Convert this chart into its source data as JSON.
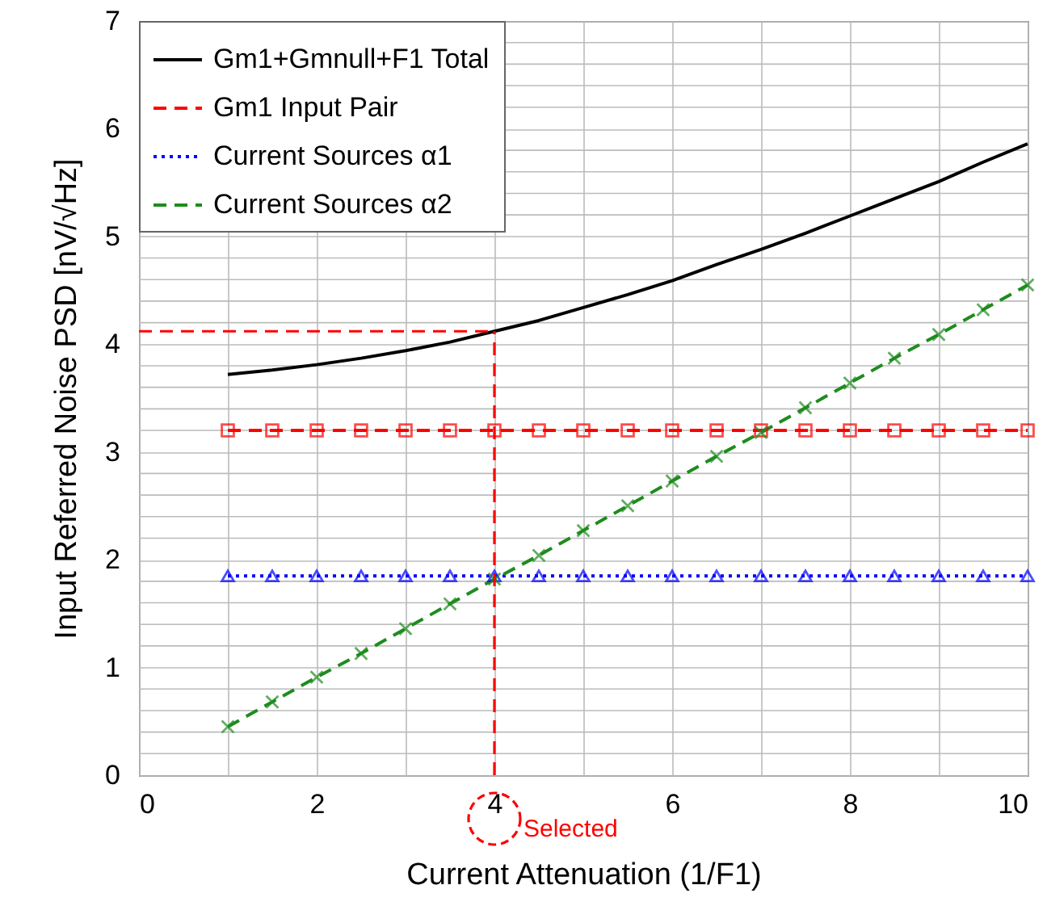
{
  "chart_data": {
    "type": "line",
    "xlabel": "Current Attenuation (1/F1)",
    "ylabel": "Input Referred Noise PSD [nV/√Hz]",
    "x": [
      1,
      1.5,
      2,
      2.5,
      3,
      3.5,
      4,
      4.5,
      5,
      5.5,
      6,
      6.5,
      7,
      7.5,
      8,
      8.5,
      9,
      9.5,
      10
    ],
    "series": [
      {
        "name": "Gm1+Gmnull+F1 Total",
        "color": "#000000",
        "line_style": "solid",
        "marker": "none",
        "values": [
          3.72,
          3.76,
          3.81,
          3.87,
          3.94,
          4.02,
          4.12,
          4.22,
          4.34,
          4.46,
          4.59,
          4.74,
          4.88,
          5.03,
          5.19,
          5.35,
          5.51,
          5.69,
          5.86
        ]
      },
      {
        "name": "Gm1 Input Pair",
        "color": "#ff0000",
        "line_style": "dashed",
        "marker": "square",
        "values": [
          3.2,
          3.2,
          3.2,
          3.2,
          3.2,
          3.2,
          3.2,
          3.2,
          3.2,
          3.2,
          3.2,
          3.2,
          3.2,
          3.2,
          3.2,
          3.2,
          3.2,
          3.2,
          3.2
        ]
      },
      {
        "name": "Current Sources α1",
        "color": "#0000ff",
        "line_style": "dotted",
        "marker": "triangle",
        "values": [
          1.85,
          1.85,
          1.85,
          1.85,
          1.85,
          1.85,
          1.85,
          1.85,
          1.85,
          1.85,
          1.85,
          1.85,
          1.85,
          1.85,
          1.85,
          1.85,
          1.85,
          1.85,
          1.85
        ]
      },
      {
        "name": "Current Sources α2",
        "color": "#1e8c1e",
        "line_style": "dashed",
        "marker": "cross",
        "values": [
          0.45,
          0.68,
          0.91,
          1.13,
          1.36,
          1.59,
          1.82,
          2.04,
          2.27,
          2.5,
          2.73,
          2.96,
          3.18,
          3.41,
          3.64,
          3.87,
          4.09,
          4.32,
          4.55
        ]
      }
    ],
    "xlim": [
      0,
      10
    ],
    "xticks": [
      0,
      {
        "value": 1,
        "label": null
      },
      2,
      {
        "value": 3,
        "label": null
      },
      4,
      {
        "value": 5,
        "label": null
      },
      6,
      {
        "value": 7,
        "label": null
      },
      8,
      {
        "value": 9,
        "label": null
      },
      10
    ],
    "ylim": [
      0,
      7
    ],
    "yticks": [
      0,
      {
        "value": 0.2,
        "label": null
      },
      {
        "value": 0.4,
        "label": null
      },
      {
        "value": 0.6,
        "label": null
      },
      {
        "value": 0.8,
        "label": null
      },
      1,
      {
        "value": 1.2,
        "label": null
      },
      {
        "value": 1.4,
        "label": null
      },
      {
        "value": 1.6,
        "label": null
      },
      {
        "value": 1.8,
        "label": null
      },
      2,
      {
        "value": 2.2,
        "label": null
      },
      {
        "value": 2.4,
        "label": null
      },
      {
        "value": 2.6,
        "label": null
      },
      {
        "value": 2.8,
        "label": null
      },
      3,
      {
        "value": 3.2,
        "label": null
      },
      {
        "value": 3.4,
        "label": null
      },
      {
        "value": 3.6,
        "label": null
      },
      {
        "value": 3.8,
        "label": null
      },
      4,
      {
        "value": 4.2,
        "label": null
      },
      {
        "value": 4.4,
        "label": null
      },
      {
        "value": 4.6,
        "label": null
      },
      {
        "value": 4.8,
        "label": null
      },
      5,
      {
        "value": 5.2,
        "label": null
      },
      {
        "value": 5.4,
        "label": null
      },
      {
        "value": 5.6,
        "label": null
      },
      {
        "value": 5.8,
        "label": null
      },
      6,
      {
        "value": 6.2,
        "label": null
      },
      {
        "value": 6.4,
        "label": null
      },
      {
        "value": 6.6,
        "label": null
      },
      {
        "value": 6.8,
        "label": null
      },
      7
    ],
    "grid": true,
    "legend": "top left",
    "ref_lines": [
      {
        "axis": "x",
        "value": 4,
        "color": "#ff0000",
        "line_style": "dashed"
      },
      {
        "axis": "y",
        "value": 4.12,
        "color": "#ff0000",
        "line_style": "dashed"
      }
    ],
    "annotations": [
      {
        "text": "Selected",
        "x": 4,
        "y": 0
      }
    ]
  }
}
